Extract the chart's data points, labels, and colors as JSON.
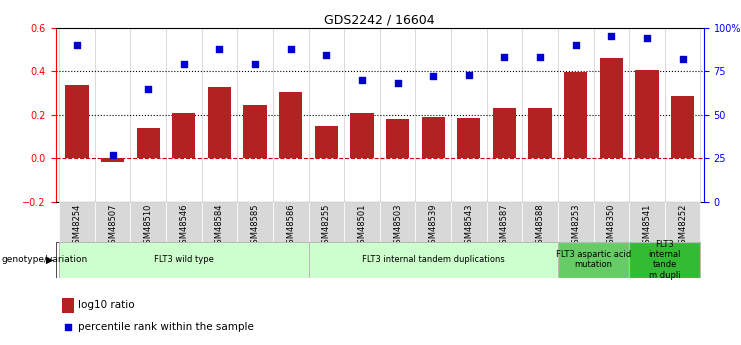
{
  "title": "GDS2242 / 16604",
  "samples": [
    "GSM48254",
    "GSM48507",
    "GSM48510",
    "GSM48546",
    "GSM48584",
    "GSM48585",
    "GSM48586",
    "GSM48255",
    "GSM48501",
    "GSM48503",
    "GSM48539",
    "GSM48543",
    "GSM48587",
    "GSM48588",
    "GSM48253",
    "GSM48350",
    "GSM48541",
    "GSM48252"
  ],
  "log10_ratio": [
    0.335,
    -0.015,
    0.14,
    0.21,
    0.325,
    0.245,
    0.305,
    0.15,
    0.21,
    0.18,
    0.19,
    0.185,
    0.23,
    0.23,
    0.395,
    0.46,
    0.405,
    0.285
  ],
  "percentile_rank": [
    90,
    27,
    65,
    79,
    88,
    79,
    88,
    84,
    70,
    68,
    72,
    73,
    83,
    83,
    90,
    95,
    94,
    82
  ],
  "bar_color": "#b22222",
  "dot_color": "#0000cc",
  "groups": [
    {
      "label": "FLT3 wild type",
      "start": 0,
      "end": 6,
      "color": "#ccffcc"
    },
    {
      "label": "FLT3 internal tandem duplications",
      "start": 7,
      "end": 13,
      "color": "#ccffcc"
    },
    {
      "label": "FLT3 aspartic acid\nmutation",
      "start": 14,
      "end": 15,
      "color": "#66cc66"
    },
    {
      "label": "FLT3\ninternal\ntande\nm dupli",
      "start": 16,
      "end": 17,
      "color": "#33bb33"
    }
  ],
  "ylim_left": [
    -0.2,
    0.6
  ],
  "ylim_right": [
    0,
    100
  ],
  "yticks_left": [
    -0.2,
    0.0,
    0.2,
    0.4,
    0.6
  ],
  "yticks_right": [
    0,
    25,
    50,
    75,
    100
  ],
  "ytick_labels_right": [
    "0",
    "25",
    "50",
    "75",
    "100%"
  ],
  "legend_bar": "log10 ratio",
  "legend_dot": "percentile rank within the sample",
  "genotype_label": "genotype/variation"
}
